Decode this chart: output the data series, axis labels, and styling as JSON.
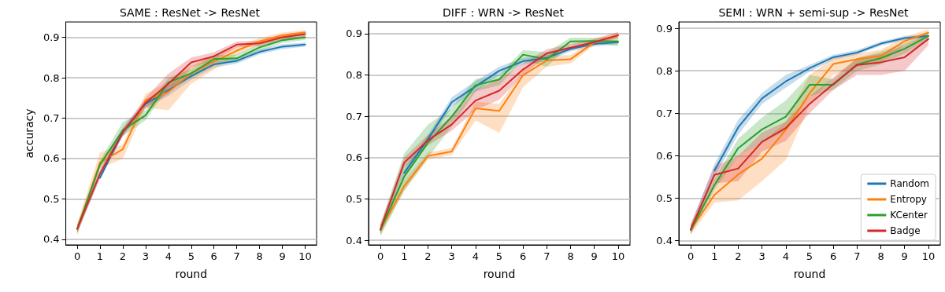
{
  "chart_data": [
    {
      "type": "line",
      "title": "SAME : ResNet -> ResNet",
      "xlabel": "round",
      "ylabel": "accuracy",
      "x": [
        0,
        1,
        2,
        3,
        4,
        5,
        6,
        7,
        8,
        9,
        10
      ],
      "xlim": [
        -0.5,
        10.5
      ],
      "xticks": [
        0,
        1,
        2,
        3,
        4,
        5,
        6,
        7,
        8,
        9,
        10
      ],
      "ylim": [
        0.386,
        0.938
      ],
      "yticks": [
        0.4,
        0.5,
        0.6,
        0.7,
        0.8,
        0.9
      ],
      "grid": "y",
      "legend": false,
      "marker": "none",
      "line_style": "solid",
      "series": [
        {
          "color": "#1f77b4",
          "values": [
            null,
            0.552,
            0.665,
            0.735,
            0.769,
            0.804,
            0.833,
            0.842,
            0.864,
            0.877,
            0.882
          ],
          "lower": [
            0.415,
            0.55,
            0.655,
            0.725,
            0.755,
            0.795,
            0.825,
            0.835,
            0.858,
            0.871,
            0.877
          ],
          "upper": [
            0.435,
            0.57,
            0.675,
            0.745,
            0.78,
            0.813,
            0.841,
            0.849,
            0.87,
            0.883,
            0.887
          ]
        },
        {
          "color": "#ff7f0e",
          "values": [
            0.425,
            0.59,
            0.623,
            0.744,
            0.765,
            0.811,
            0.84,
            0.867,
            0.89,
            0.905,
            0.912
          ],
          "lower": [
            0.41,
            0.575,
            0.6,
            0.725,
            0.72,
            0.785,
            0.82,
            0.857,
            0.882,
            0.898,
            0.905
          ],
          "upper": [
            0.44,
            0.615,
            0.635,
            0.76,
            0.79,
            0.83,
            0.855,
            0.877,
            0.898,
            0.912,
            0.918
          ]
        },
        {
          "color": "#2ca02c",
          "values": [
            0.425,
            0.585,
            0.67,
            0.707,
            0.788,
            0.811,
            0.846,
            0.848,
            0.875,
            0.893,
            0.9
          ],
          "lower": [
            0.415,
            0.575,
            0.655,
            0.695,
            0.775,
            0.8,
            0.836,
            0.838,
            0.867,
            0.886,
            0.894
          ],
          "upper": [
            0.435,
            0.595,
            0.69,
            0.72,
            0.8,
            0.822,
            0.856,
            0.858,
            0.883,
            0.9,
            0.906
          ]
        },
        {
          "color": "#d62728",
          "values": [
            0.426,
            0.562,
            0.665,
            0.738,
            0.785,
            0.838,
            0.853,
            0.882,
            0.885,
            0.9,
            0.908
          ],
          "lower": [
            0.415,
            0.552,
            0.655,
            0.725,
            0.76,
            0.825,
            0.843,
            0.875,
            0.878,
            0.893,
            0.9
          ],
          "upper": [
            0.435,
            0.572,
            0.675,
            0.75,
            0.81,
            0.85,
            0.863,
            0.89,
            0.892,
            0.907,
            0.915
          ]
        }
      ]
    },
    {
      "type": "line",
      "title": "DIFF : WRN -> ResNet",
      "xlabel": "round",
      "x": [
        0,
        1,
        2,
        3,
        4,
        5,
        6,
        7,
        8,
        9,
        10
      ],
      "xlim": [
        -0.5,
        10.5
      ],
      "xticks": [
        0,
        1,
        2,
        3,
        4,
        5,
        6,
        7,
        8,
        9,
        10
      ],
      "ylim": [
        0.389,
        0.928
      ],
      "yticks": [
        0.4,
        0.5,
        0.6,
        0.7,
        0.8,
        0.9
      ],
      "grid": "y",
      "legend": false,
      "marker": "none",
      "line_style": "solid",
      "series": [
        {
          "color": "#1f77b4",
          "values": [
            null,
            0.563,
            0.645,
            0.734,
            0.772,
            0.81,
            0.833,
            0.841,
            0.863,
            0.875,
            0.879
          ],
          "lower": [
            0.415,
            0.553,
            0.635,
            0.722,
            0.76,
            0.8,
            0.825,
            0.834,
            0.857,
            0.869,
            0.874
          ],
          "upper": [
            0.435,
            0.573,
            0.655,
            0.746,
            0.785,
            0.82,
            0.841,
            0.848,
            0.869,
            0.881,
            0.884
          ]
        },
        {
          "color": "#ff7f0e",
          "values": [
            0.425,
            0.531,
            0.604,
            0.615,
            0.719,
            0.713,
            0.799,
            0.835,
            0.838,
            0.879,
            0.895
          ],
          "lower": [
            0.415,
            0.52,
            0.595,
            0.607,
            0.69,
            0.66,
            0.77,
            0.82,
            0.828,
            0.872,
            0.888
          ],
          "upper": [
            0.435,
            0.545,
            0.613,
            0.623,
            0.735,
            0.73,
            0.81,
            0.848,
            0.848,
            0.886,
            0.902
          ]
        },
        {
          "color": "#2ca02c",
          "values": [
            0.425,
            0.554,
            0.636,
            0.699,
            0.775,
            0.789,
            0.849,
            0.838,
            0.881,
            0.882,
            0.881
          ],
          "lower": [
            0.41,
            0.52,
            0.6,
            0.675,
            0.76,
            0.775,
            0.835,
            0.82,
            0.872,
            0.875,
            0.87
          ],
          "upper": [
            0.44,
            0.61,
            0.68,
            0.72,
            0.79,
            0.8,
            0.86,
            0.855,
            0.89,
            0.89,
            0.892
          ]
        },
        {
          "color": "#d62728",
          "values": [
            0.427,
            0.588,
            0.642,
            0.68,
            0.738,
            0.762,
            0.813,
            0.852,
            0.866,
            0.879,
            0.896
          ],
          "lower": [
            0.415,
            0.575,
            0.63,
            0.665,
            0.715,
            0.74,
            0.8,
            0.845,
            0.86,
            0.873,
            0.89
          ],
          "upper": [
            0.44,
            0.6,
            0.655,
            0.7,
            0.765,
            0.79,
            0.828,
            0.862,
            0.874,
            0.887,
            0.904
          ]
        }
      ]
    },
    {
      "type": "line",
      "title": "SEMI : WRN + semi-sup -> ResNet",
      "xlabel": "round",
      "x": [
        0,
        1,
        2,
        3,
        4,
        5,
        6,
        7,
        8,
        9,
        10
      ],
      "xlim": [
        -0.5,
        10.5
      ],
      "xticks": [
        0,
        1,
        2,
        3,
        4,
        5,
        6,
        7,
        8,
        9,
        10
      ],
      "ylim": [
        0.39,
        0.915
      ],
      "yticks": [
        0.4,
        0.5,
        0.6,
        0.7,
        0.8,
        0.9
      ],
      "grid": "y",
      "legend": "bottom right",
      "marker": "none",
      "line_style": "solid",
      "series": [
        {
          "name": "Random",
          "color": "#1f77b4",
          "values": [
            null,
            0.565,
            0.667,
            0.735,
            0.775,
            0.806,
            0.832,
            0.843,
            0.864,
            0.877,
            0.882
          ],
          "lower": [
            0.417,
            0.55,
            0.65,
            0.722,
            0.76,
            0.798,
            0.826,
            0.838,
            0.859,
            0.872,
            0.877
          ],
          "upper": [
            0.437,
            0.58,
            0.685,
            0.748,
            0.79,
            0.814,
            0.838,
            0.849,
            0.869,
            0.882,
            0.887
          ]
        },
        {
          "name": "Entropy",
          "color": "#ff7f0e",
          "values": [
            0.425,
            0.508,
            0.556,
            0.593,
            0.661,
            0.747,
            0.816,
            0.827,
            0.835,
            0.87,
            0.89
          ],
          "lower": [
            0.415,
            0.49,
            0.495,
            0.54,
            0.59,
            0.72,
            0.79,
            0.81,
            0.82,
            0.86,
            0.88
          ],
          "upper": [
            0.435,
            0.53,
            0.6,
            0.63,
            0.68,
            0.79,
            0.83,
            0.84,
            0.85,
            0.88,
            0.898
          ]
        },
        {
          "name": "KCenter",
          "color": "#2ca02c",
          "values": [
            0.425,
            0.531,
            0.618,
            0.662,
            0.692,
            0.767,
            0.767,
            0.815,
            0.83,
            0.852,
            0.882
          ],
          "lower": [
            0.415,
            0.52,
            0.6,
            0.63,
            0.66,
            0.74,
            0.755,
            0.8,
            0.815,
            0.84,
            0.872
          ],
          "upper": [
            0.435,
            0.545,
            0.64,
            0.69,
            0.73,
            0.79,
            0.78,
            0.83,
            0.845,
            0.865,
            0.89
          ]
        },
        {
          "name": "Badge",
          "color": "#d62728",
          "values": [
            0.427,
            0.555,
            0.57,
            0.633,
            0.665,
            0.722,
            0.769,
            0.814,
            0.82,
            0.832,
            0.875
          ],
          "lower": [
            0.415,
            0.535,
            0.54,
            0.61,
            0.635,
            0.7,
            0.755,
            0.79,
            0.79,
            0.8,
            0.86
          ],
          "upper": [
            0.44,
            0.575,
            0.6,
            0.655,
            0.68,
            0.74,
            0.785,
            0.83,
            0.84,
            0.86,
            0.885
          ]
        }
      ]
    }
  ]
}
